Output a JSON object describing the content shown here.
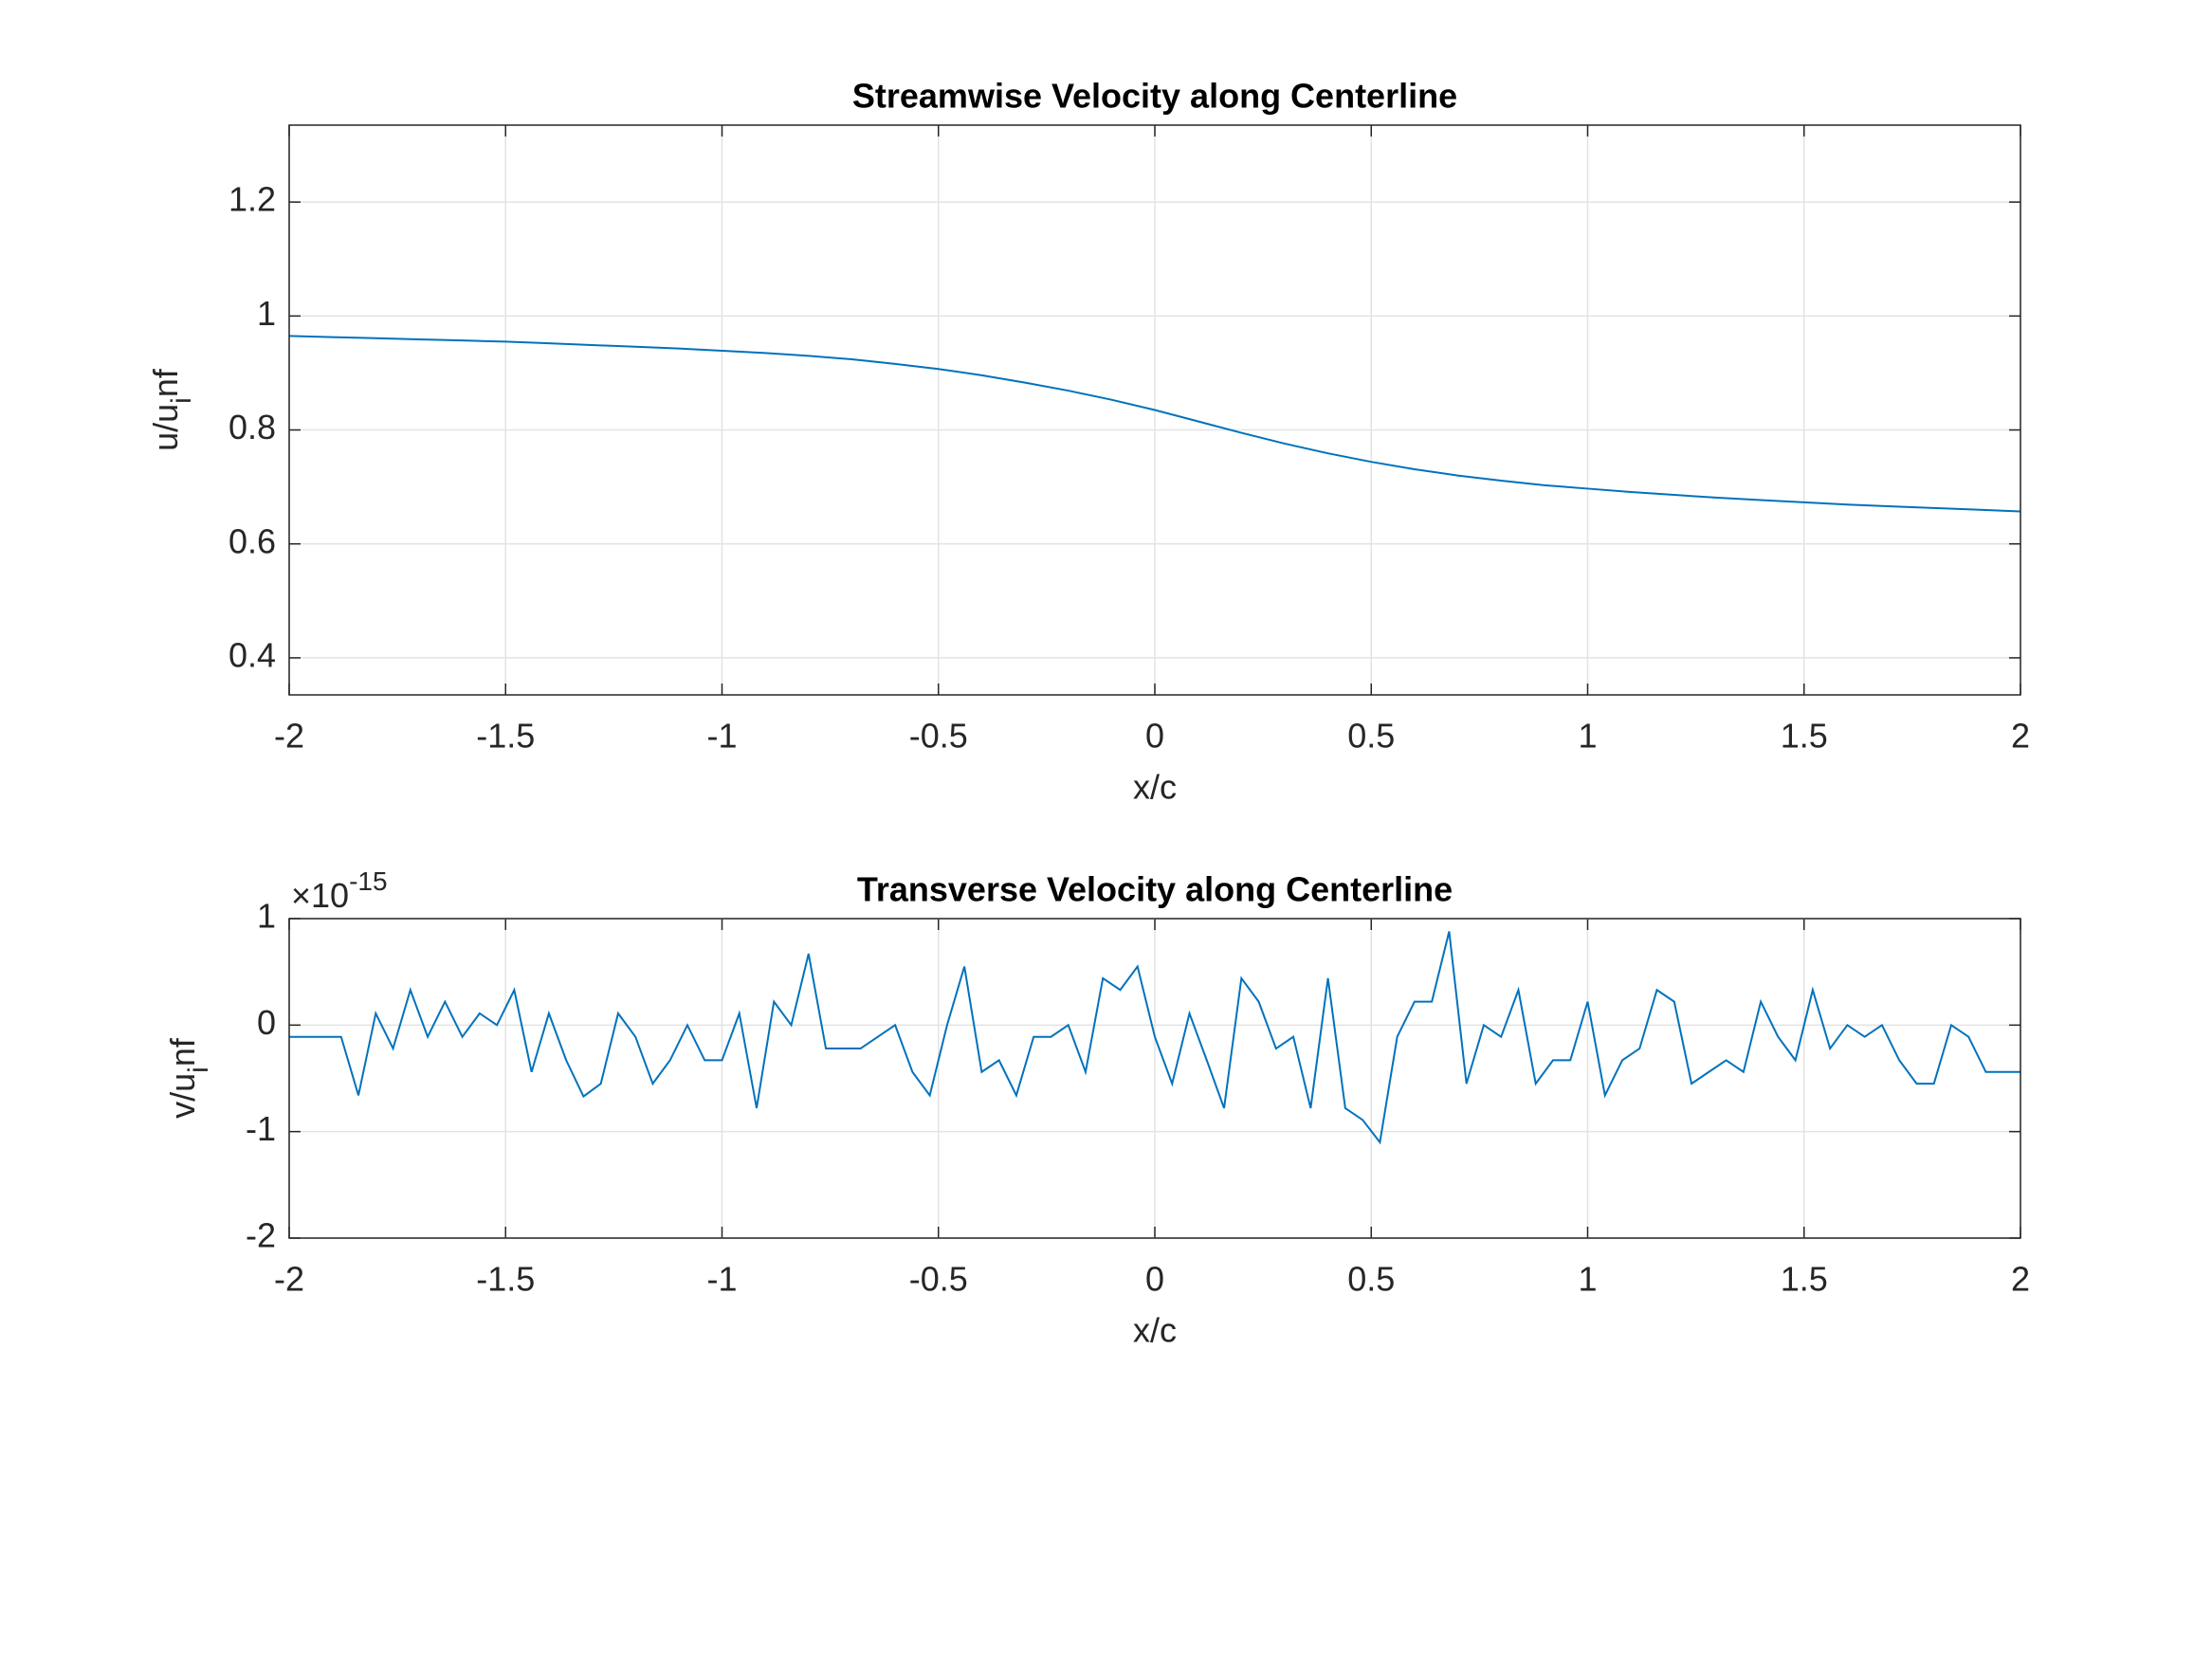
{
  "chart_data": [
    {
      "type": "line",
      "title": "Streamwise Velocity along Centerline",
      "xlabel": "x/c",
      "ylabel": [
        "u/u",
        "i",
        "nf"
      ],
      "x": [
        -2,
        -1.9,
        -1.8,
        -1.7,
        -1.6,
        -1.5,
        -1.4,
        -1.3,
        -1.2,
        -1.1,
        -1,
        -0.9,
        -0.8,
        -0.7,
        -0.6,
        -0.5,
        -0.4,
        -0.3,
        -0.2,
        -0.1,
        0,
        0.1,
        0.2,
        0.3,
        0.4,
        0.5,
        0.6,
        0.7,
        0.8,
        0.9,
        1,
        1.1,
        1.2,
        1.3,
        1.4,
        1.5,
        1.6,
        1.7,
        1.8,
        1.9,
        2
      ],
      "values": [
        0.965,
        0.963,
        0.961,
        0.959,
        0.957,
        0.955,
        0.952,
        0.949,
        0.946,
        0.943,
        0.939,
        0.935,
        0.93,
        0.924,
        0.916,
        0.907,
        0.896,
        0.883,
        0.869,
        0.853,
        0.835,
        0.815,
        0.795,
        0.776,
        0.759,
        0.744,
        0.731,
        0.72,
        0.711,
        0.703,
        0.697,
        0.691,
        0.686,
        0.681,
        0.677,
        0.673,
        0.669,
        0.666,
        0.663,
        0.66,
        0.657
      ],
      "color": "#0072bd",
      "xlim": [
        -2,
        2
      ],
      "ylim": [
        0.335,
        1.335
      ],
      "xticks": [
        -2,
        -1.5,
        -1,
        -0.5,
        0,
        0.5,
        1,
        1.5,
        2
      ],
      "yticks": [
        0.4,
        0.6,
        0.8,
        1,
        1.2
      ],
      "grid": true
    },
    {
      "type": "line",
      "title": "Transverse Velocity along Centerline",
      "xlabel": "x/c",
      "ylabel": [
        "v/u",
        "i",
        "nf"
      ],
      "exponent_label": [
        "×10",
        "-15"
      ],
      "x": [
        -2,
        -1.96,
        -1.92,
        -1.88,
        -1.84,
        -1.8,
        -1.76,
        -1.72,
        -1.68,
        -1.64,
        -1.6,
        -1.56,
        -1.52,
        -1.48,
        -1.44,
        -1.4,
        -1.36,
        -1.32,
        -1.28,
        -1.24,
        -1.2,
        -1.16,
        -1.12,
        -1.08,
        -1.04,
        -1,
        -0.96,
        -0.92,
        -0.88,
        -0.84,
        -0.8,
        -0.76,
        -0.72,
        -0.68,
        -0.64,
        -0.6,
        -0.56,
        -0.52,
        -0.48,
        -0.44,
        -0.4,
        -0.36,
        -0.32,
        -0.28,
        -0.24,
        -0.2,
        -0.16,
        -0.12,
        -0.08,
        -0.04,
        0,
        0.04,
        0.08,
        0.12,
        0.16,
        0.2,
        0.24,
        0.28,
        0.32,
        0.36,
        0.4,
        0.44,
        0.48,
        0.52,
        0.56,
        0.6,
        0.64,
        0.68,
        0.72,
        0.76,
        0.8,
        0.84,
        0.88,
        0.92,
        0.96,
        1,
        1.04,
        1.08,
        1.12,
        1.16,
        1.2,
        1.24,
        1.28,
        1.32,
        1.36,
        1.4,
        1.44,
        1.48,
        1.52,
        1.56,
        1.6,
        1.64,
        1.68,
        1.72,
        1.76,
        1.8,
        1.84,
        1.88,
        1.92,
        1.96,
        2
      ],
      "values": [
        -0.11,
        -0.11,
        -0.11,
        -0.11,
        -0.66,
        0.11,
        -0.22,
        0.33,
        -0.11,
        0.22,
        -0.11,
        0.11,
        0,
        0.33,
        -0.44,
        0.11,
        -0.33,
        -0.67,
        -0.55,
        0.11,
        -0.11,
        -0.55,
        -0.33,
        0,
        -0.33,
        -0.33,
        0.11,
        -0.78,
        0.22,
        0,
        0.67,
        -0.22,
        -0.22,
        -0.22,
        -0.11,
        0,
        -0.44,
        -0.66,
        0,
        0.55,
        -0.44,
        -0.33,
        -0.66,
        -0.11,
        -0.11,
        0,
        -0.44,
        0.44,
        0.33,
        0.55,
        -0.11,
        -0.55,
        0.11,
        -0.33,
        -0.78,
        0.44,
        0.22,
        -0.22,
        -0.11,
        -0.78,
        0.44,
        -0.78,
        -0.89,
        -1.1,
        -0.11,
        0.22,
        0.22,
        0.88,
        -0.55,
        0,
        -0.11,
        0.33,
        -0.55,
        -0.33,
        -0.33,
        0.22,
        -0.66,
        -0.33,
        -0.22,
        0.33,
        0.22,
        -0.55,
        -0.44,
        -0.33,
        -0.44,
        0.22,
        -0.11,
        -0.33,
        0.33,
        -0.22,
        0,
        -0.11,
        0,
        -0.33,
        -0.55,
        -0.55,
        0,
        -0.11,
        -0.44,
        -0.44,
        -0.44
      ],
      "color": "#0072bd",
      "xlim": [
        -2,
        2
      ],
      "ylim": [
        -2,
        1
      ],
      "xticks": [
        -2,
        -1.5,
        -1,
        -0.5,
        0,
        0.5,
        1,
        1.5,
        2
      ],
      "yticks": [
        -2,
        -1,
        0,
        1
      ],
      "grid": true
    }
  ]
}
